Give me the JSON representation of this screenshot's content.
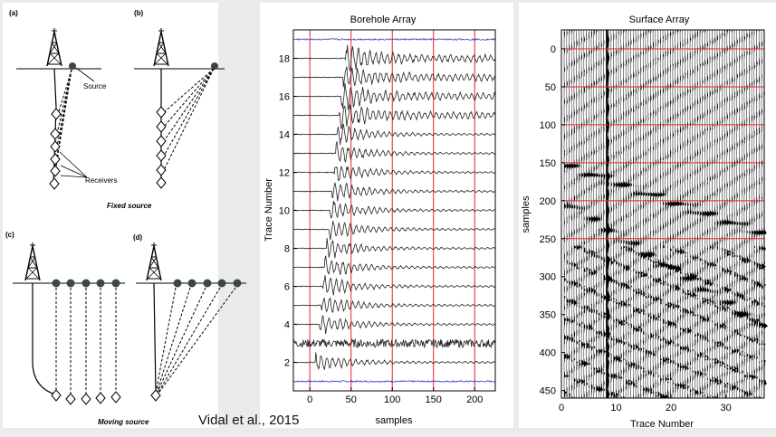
{
  "panel_labels": [
    "(a)",
    "(b)",
    "(c)",
    "(d)"
  ],
  "annotations": {
    "source": "Source",
    "receivers": "Receivers",
    "fixed_caption": "Fixed source",
    "moving_caption": "Moving source"
  },
  "citation": "Vidal et al., 2015",
  "chart_data": [
    {
      "type": "line",
      "title": "Borehole Array",
      "xlabel": "samples",
      "ylabel": "Trace Number",
      "xlim": [
        -20,
        225
      ],
      "ylim": [
        0.5,
        19.5
      ],
      "x_ticks": [
        0,
        50,
        100,
        150,
        200
      ],
      "y_ticks": [
        2,
        4,
        6,
        8,
        10,
        12,
        14,
        16,
        18
      ],
      "vertical_lines_x": [
        0,
        50,
        100,
        150,
        200
      ],
      "trace_count": 19,
      "highlighted_traces": [
        1,
        19
      ],
      "colors": {
        "grid": "#e8202a",
        "trace": "#222222",
        "highlight": "#3340c0"
      }
    },
    {
      "type": "heatmap",
      "title": "Surface Array",
      "xlabel": "Trace Number",
      "ylabel": "samples",
      "xlim": [
        0,
        37
      ],
      "ylim": [
        460,
        -25
      ],
      "x_ticks": [
        0,
        10,
        20,
        30
      ],
      "y_ticks": [
        0,
        50,
        100,
        150,
        200,
        250,
        300,
        350,
        400,
        450
      ],
      "horizontal_lines_y": [
        0,
        50,
        100,
        150,
        200,
        250
      ],
      "colors": {
        "grid": "#e8202a",
        "wiggle": "#000000"
      }
    }
  ]
}
